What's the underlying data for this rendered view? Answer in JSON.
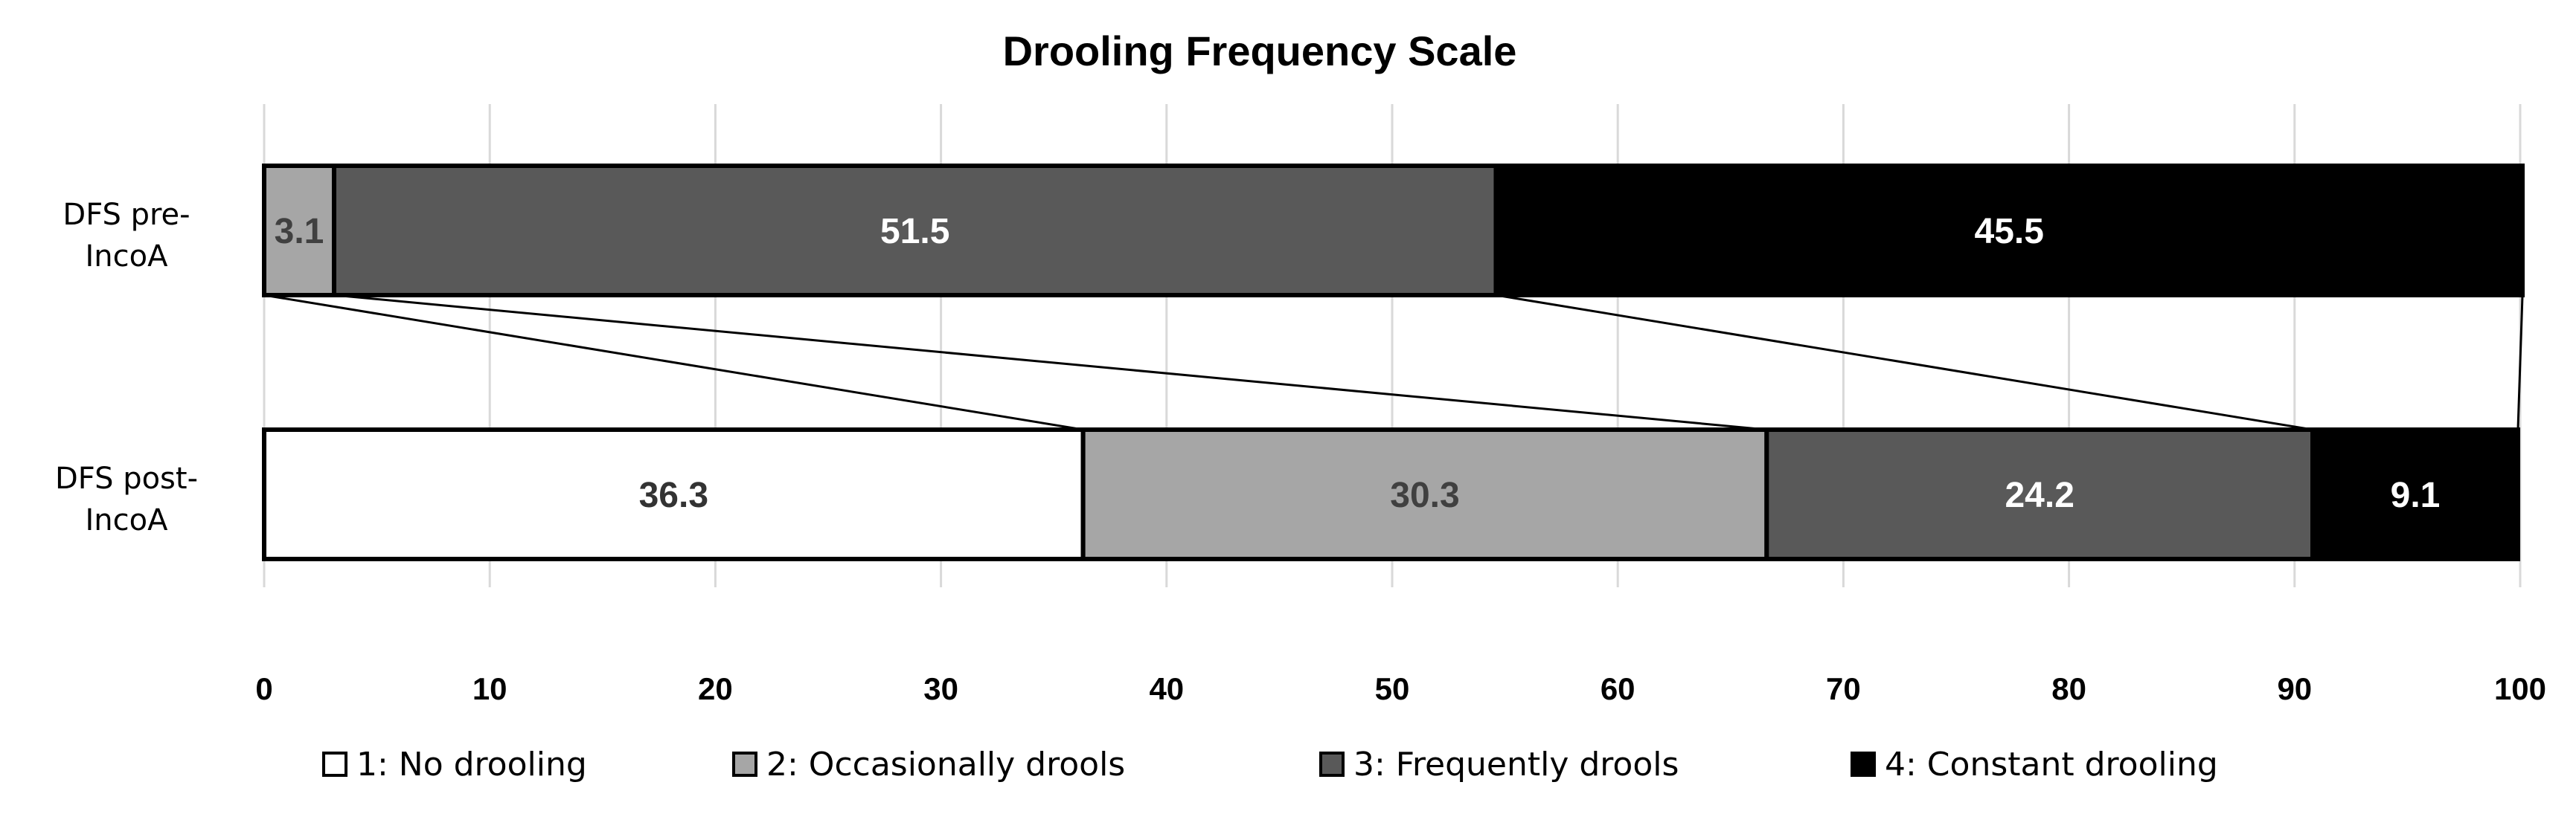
{
  "chart_data": {
    "type": "bar",
    "orientation": "horizontal",
    "stacked": true,
    "title": "Drooling Frequency Scale",
    "categories": [
      "DFS pre-IncoA",
      "DFS post-IncoA"
    ],
    "category_lines": [
      [
        "DFS pre-",
        "IncoA"
      ],
      [
        "DFS post-",
        "IncoA"
      ]
    ],
    "series": [
      {
        "name": "1: No drooling",
        "values": [
          0,
          36.3
        ],
        "color": "#ffffff",
        "label_color": "#333333"
      },
      {
        "name": "2: Occasionally drools",
        "values": [
          3.1,
          30.3
        ],
        "color": "#a6a6a6",
        "label_color": "#404040"
      },
      {
        "name": "3: Frequently drools",
        "values": [
          51.5,
          24.2
        ],
        "color": "#595959",
        "label_color": "#ffffff"
      },
      {
        "name": "4: Constant drooling",
        "values": [
          45.5,
          9.1
        ],
        "color": "#000000",
        "label_color": "#ffffff"
      }
    ],
    "data_labels": [
      [
        null,
        "3.1",
        "51.5",
        "45.5"
      ],
      [
        "36.3",
        "30.3",
        "24.2",
        "9.1"
      ]
    ],
    "xlim": [
      0,
      100
    ],
    "xticks": [
      0,
      10,
      20,
      30,
      40,
      50,
      60,
      70,
      80,
      90,
      100
    ],
    "grid": true,
    "series_lines": true,
    "legend_position": "bottom"
  }
}
